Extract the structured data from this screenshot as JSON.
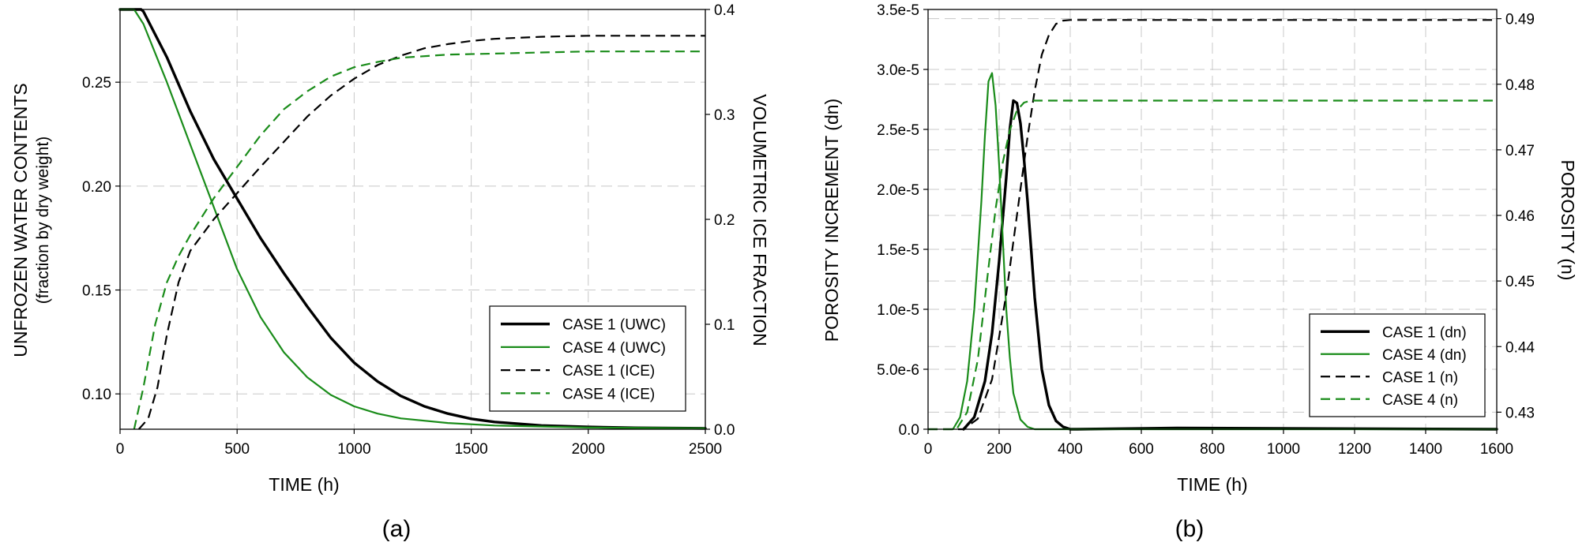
{
  "chart_data": [
    {
      "type": "line",
      "caption": "(a)",
      "xlabel": "TIME (h)",
      "ylabel": "UNFROZEN WATER CONTENTS",
      "ylabel_sub": "(fraction by dry weight)",
      "y2label": "VOLUMETRIC ICE FRACTION",
      "xlim": [
        0,
        2500
      ],
      "ylim": [
        0.083,
        0.285
      ],
      "y2lim": [
        0,
        0.4
      ],
      "xticks": [
        "0",
        "500",
        "1000",
        "1500",
        "2000",
        "2500"
      ],
      "yticks": [
        "0.10",
        "0.15",
        "0.20",
        "0.25"
      ],
      "y2ticks": [
        "0.0",
        "0.1",
        "0.2",
        "0.3",
        "0.4"
      ],
      "grid": true,
      "legend_position": "lower-right",
      "series": [
        {
          "name": "CASE 1 (UWC)",
          "axis": "left",
          "color": "#000000",
          "style": "solid",
          "width": "thick",
          "x": [
            0,
            90,
            100,
            200,
            300,
            400,
            500,
            600,
            700,
            800,
            900,
            1000,
            1100,
            1200,
            1300,
            1400,
            1500,
            1600,
            1800,
            2000,
            2200,
            2500
          ],
          "y": [
            0.285,
            0.285,
            0.284,
            0.262,
            0.236,
            0.213,
            0.194,
            0.175,
            0.158,
            0.142,
            0.127,
            0.115,
            0.106,
            0.099,
            0.094,
            0.0905,
            0.088,
            0.0865,
            0.0848,
            0.0841,
            0.0837,
            0.0834
          ]
        },
        {
          "name": "CASE 4 (UWC)",
          "axis": "left",
          "color": "#1a8c1a",
          "style": "solid",
          "width": "normal",
          "x": [
            0,
            60,
            100,
            200,
            300,
            400,
            500,
            600,
            700,
            800,
            900,
            1000,
            1100,
            1200,
            1400,
            1600,
            2000,
            2500
          ],
          "y": [
            0.285,
            0.285,
            0.278,
            0.25,
            0.22,
            0.19,
            0.16,
            0.137,
            0.12,
            0.108,
            0.0995,
            0.094,
            0.0905,
            0.0882,
            0.086,
            0.0848,
            0.0838,
            0.0834
          ]
        },
        {
          "name": "CASE 1 (ICE)",
          "axis": "right",
          "color": "#000000",
          "style": "dashed",
          "width": "normal",
          "x": [
            80,
            120,
            160,
            200,
            250,
            300,
            350,
            400,
            500,
            600,
            700,
            800,
            900,
            1000,
            1100,
            1200,
            1300,
            1400,
            1500,
            1600,
            1700,
            1800,
            2000,
            2200,
            2500
          ],
          "y": [
            0.0,
            0.01,
            0.04,
            0.09,
            0.14,
            0.17,
            0.185,
            0.2,
            0.225,
            0.25,
            0.274,
            0.298,
            0.318,
            0.334,
            0.347,
            0.356,
            0.363,
            0.367,
            0.37,
            0.372,
            0.373,
            0.374,
            0.375,
            0.375,
            0.375
          ]
        },
        {
          "name": "CASE 4 (ICE)",
          "axis": "right",
          "color": "#1a8c1a",
          "style": "dashed",
          "width": "normal",
          "x": [
            60,
            100,
            150,
            200,
            250,
            300,
            400,
            500,
            600,
            700,
            800,
            900,
            1000,
            1100,
            1200,
            1400,
            1600,
            1800,
            2000,
            2500
          ],
          "y": [
            0.0,
            0.04,
            0.1,
            0.14,
            0.165,
            0.185,
            0.22,
            0.25,
            0.28,
            0.305,
            0.322,
            0.336,
            0.345,
            0.35,
            0.354,
            0.357,
            0.358,
            0.359,
            0.36,
            0.36
          ]
        }
      ]
    },
    {
      "type": "line",
      "caption": "(b)",
      "xlabel": "TIME (h)",
      "ylabel": "POROSITY INCREMENT (dn)",
      "y2label": "POROSITY (n)",
      "xlim": [
        0,
        1600
      ],
      "ylim": [
        0,
        3.5e-05
      ],
      "y2lim": [
        0.4274,
        0.4914
      ],
      "xticks": [
        "0",
        "200",
        "400",
        "600",
        "800",
        "1000",
        "1200",
        "1400",
        "1600"
      ],
      "yticks": [
        "0.0",
        "5.0e-6",
        "1.0e-5",
        "1.5e-5",
        "2.0e-5",
        "2.5e-5",
        "3.0e-5",
        "3.5e-5"
      ],
      "y2ticks": [
        "0.43",
        "0.44",
        "0.45",
        "0.46",
        "0.47",
        "0.48",
        "0.49"
      ],
      "grid": true,
      "legend_position": "lower-right",
      "series": [
        {
          "name": "CASE 1 (dn)",
          "axis": "left",
          "color": "#000000",
          "style": "solid",
          "width": "thick",
          "x": [
            100,
            130,
            160,
            180,
            200,
            210,
            220,
            230,
            240,
            250,
            260,
            270,
            280,
            290,
            300,
            320,
            340,
            360,
            380,
            400,
            420,
            700,
            1600
          ],
          "y": [
            0,
            1e-06,
            4e-06,
            8e-06,
            1.4e-05,
            1.75e-05,
            2.1e-05,
            2.5e-05,
            2.74e-05,
            2.72e-05,
            2.55e-05,
            2.25e-05,
            1.9e-05,
            1.5e-05,
            1.1e-05,
            5e-06,
            2e-06,
            7e-07,
            2e-07,
            0,
            0,
            1e-07,
            0
          ]
        },
        {
          "name": "CASE 4 (dn)",
          "axis": "left",
          "color": "#1a8c1a",
          "style": "solid",
          "width": "normal",
          "x": [
            70,
            90,
            110,
            130,
            150,
            160,
            170,
            180,
            190,
            200,
            210,
            220,
            230,
            240,
            260,
            280,
            300,
            1600
          ],
          "y": [
            0,
            1e-06,
            4e-06,
            1e-05,
            1.9e-05,
            2.45e-05,
            2.9e-05,
            2.97e-05,
            2.7e-05,
            2.2e-05,
            1.6e-05,
            1e-05,
            6e-06,
            3e-06,
            8e-07,
            2e-07,
            0,
            0
          ]
        },
        {
          "name": "CASE 1 (n)",
          "axis": "right",
          "color": "#000000",
          "style": "dashed",
          "width": "normal",
          "x": [
            0,
            100,
            140,
            180,
            220,
            250,
            280,
            300,
            320,
            340,
            360,
            380,
            400,
            450,
            1600
          ],
          "y": [
            0.4274,
            0.4274,
            0.429,
            0.435,
            0.448,
            0.46,
            0.472,
            0.479,
            0.4845,
            0.4875,
            0.4892,
            0.4897,
            0.4898,
            0.4898,
            0.4898
          ]
        },
        {
          "name": "CASE 4 (n)",
          "axis": "right",
          "color": "#1a8c1a",
          "style": "dashed",
          "width": "normal",
          "x": [
            0,
            80,
            110,
            140,
            170,
            190,
            210,
            230,
            250,
            270,
            290,
            310,
            1600
          ],
          "y": [
            0.4274,
            0.4274,
            0.43,
            0.438,
            0.452,
            0.461,
            0.468,
            0.473,
            0.476,
            0.4772,
            0.4775,
            0.4775,
            0.4775
          ]
        }
      ]
    }
  ]
}
